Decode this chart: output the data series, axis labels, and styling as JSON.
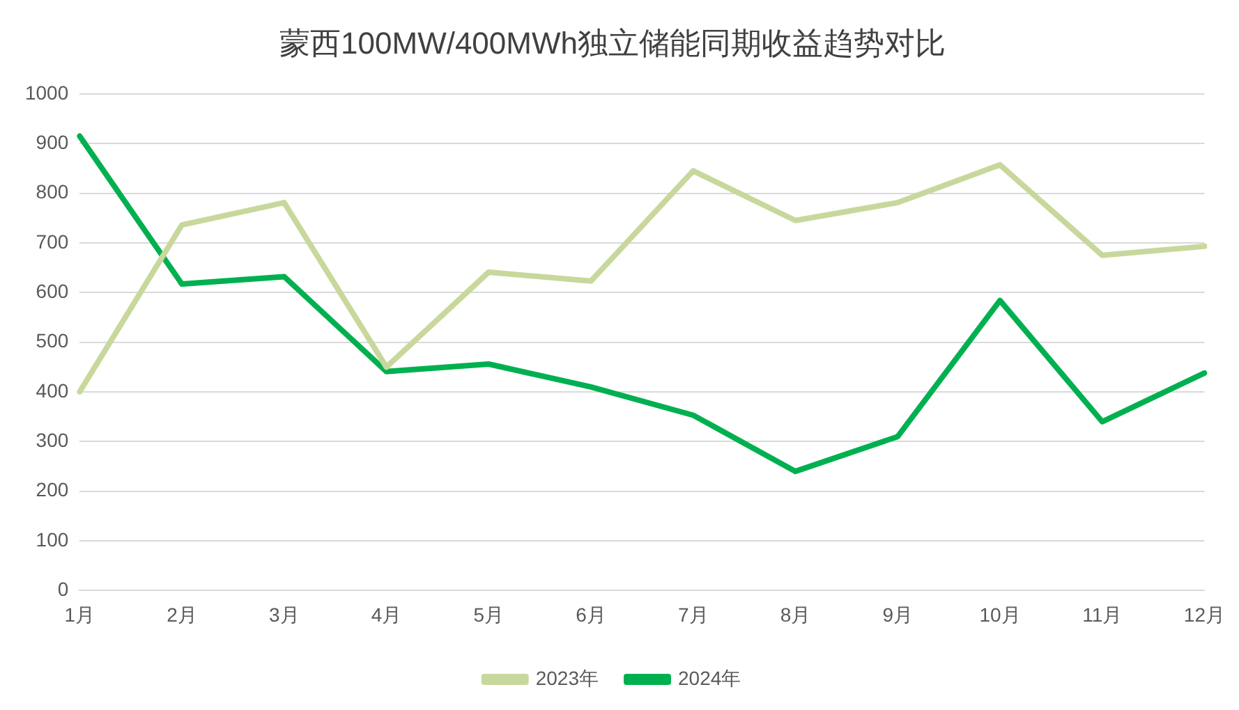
{
  "chart_data": {
    "type": "line",
    "title": "蒙西100MW/400MWh独立储能同期收益趋势对比",
    "categories": [
      "1月",
      "2月",
      "3月",
      "4月",
      "5月",
      "6月",
      "7月",
      "8月",
      "9月",
      "10月",
      "11月",
      "12月"
    ],
    "series": [
      {
        "name": "2023年",
        "color": "#c8d89c",
        "values": [
          400,
          736,
          781,
          450,
          641,
          623,
          845,
          745,
          781,
          857,
          675,
          693
        ]
      },
      {
        "name": "2024年",
        "color": "#00b050",
        "values": [
          915,
          617,
          632,
          441,
          456,
          410,
          353,
          240,
          310,
          584,
          340,
          438
        ]
      }
    ],
    "ylim": [
      0,
      1000
    ],
    "yticks": [
      0,
      100,
      200,
      300,
      400,
      500,
      600,
      700,
      800,
      900,
      1000
    ],
    "grid": "y",
    "legend": "bottom",
    "marker": "none",
    "line_style": "solid"
  }
}
